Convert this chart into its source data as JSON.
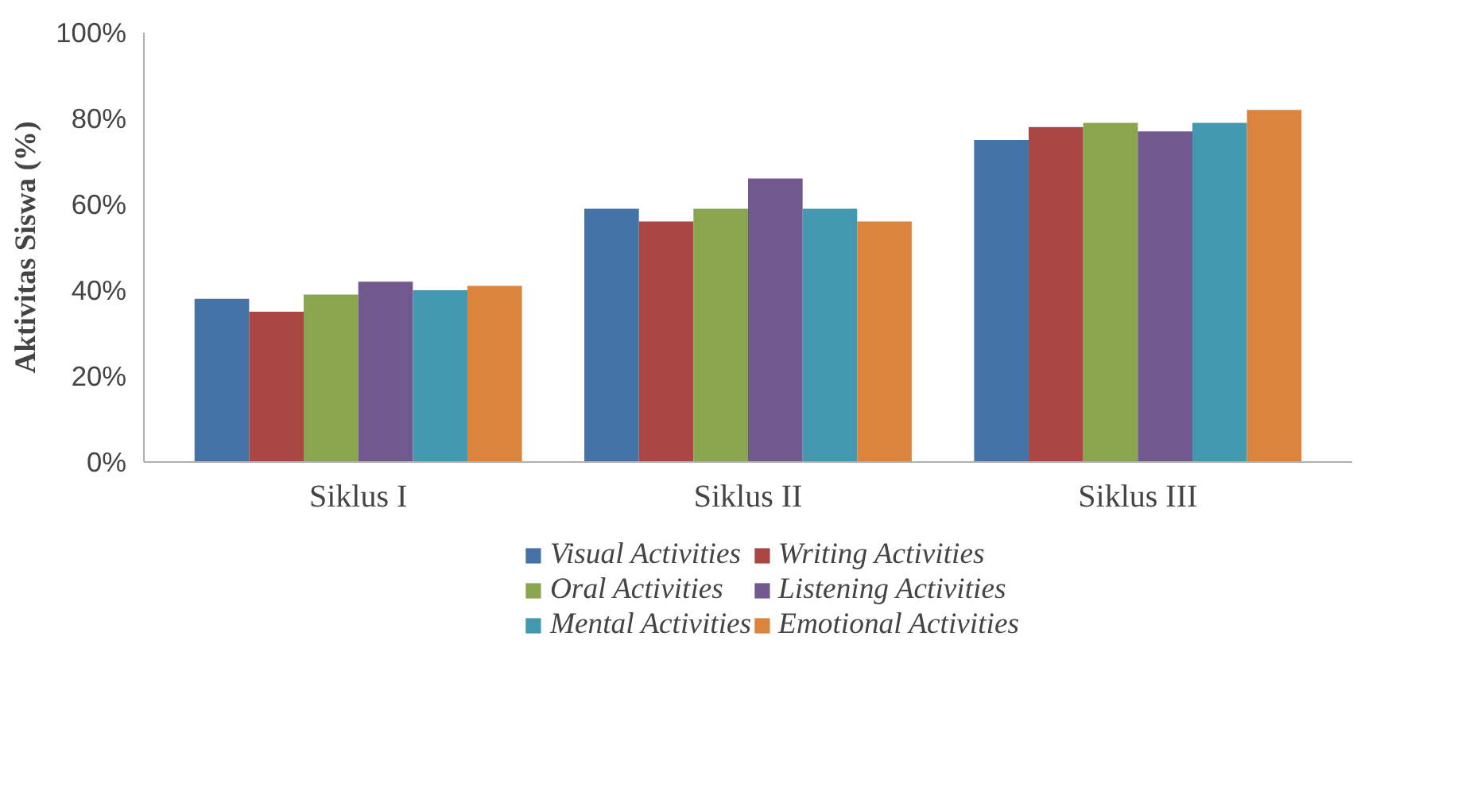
{
  "chart_data": {
    "type": "bar",
    "ylabel": "Aktivitas Siswa (%)",
    "categories": [
      "Siklus I",
      "Siklus II",
      "Siklus III"
    ],
    "series": [
      {
        "name": "Visual Activities",
        "color": "#4572a7",
        "values": [
          38,
          59,
          75
        ]
      },
      {
        "name": "Writing Activities",
        "color": "#aa4643",
        "values": [
          35,
          56,
          78
        ]
      },
      {
        "name": "Oral Activities",
        "color": "#89a54e",
        "values": [
          39,
          59,
          79
        ]
      },
      {
        "name": "Listening Activities",
        "color": "#71588f",
        "values": [
          42,
          66,
          77
        ]
      },
      {
        "name": "Mental Activities",
        "color": "#4198af",
        "values": [
          40,
          59,
          79
        ]
      },
      {
        "name": "Emotional Activities",
        "color": "#db843d",
        "values": [
          41,
          56,
          82
        ]
      }
    ],
    "ylim": [
      0,
      100
    ],
    "yticks": [
      {
        "value": 0,
        "label": "0%"
      },
      {
        "value": 20,
        "label": "20%"
      },
      {
        "value": 40,
        "label": "40%"
      },
      {
        "value": 60,
        "label": "60%"
      },
      {
        "value": 80,
        "label": "80%"
      },
      {
        "value": 100,
        "label": "100%"
      }
    ],
    "grid": false,
    "legend": "bottom"
  }
}
